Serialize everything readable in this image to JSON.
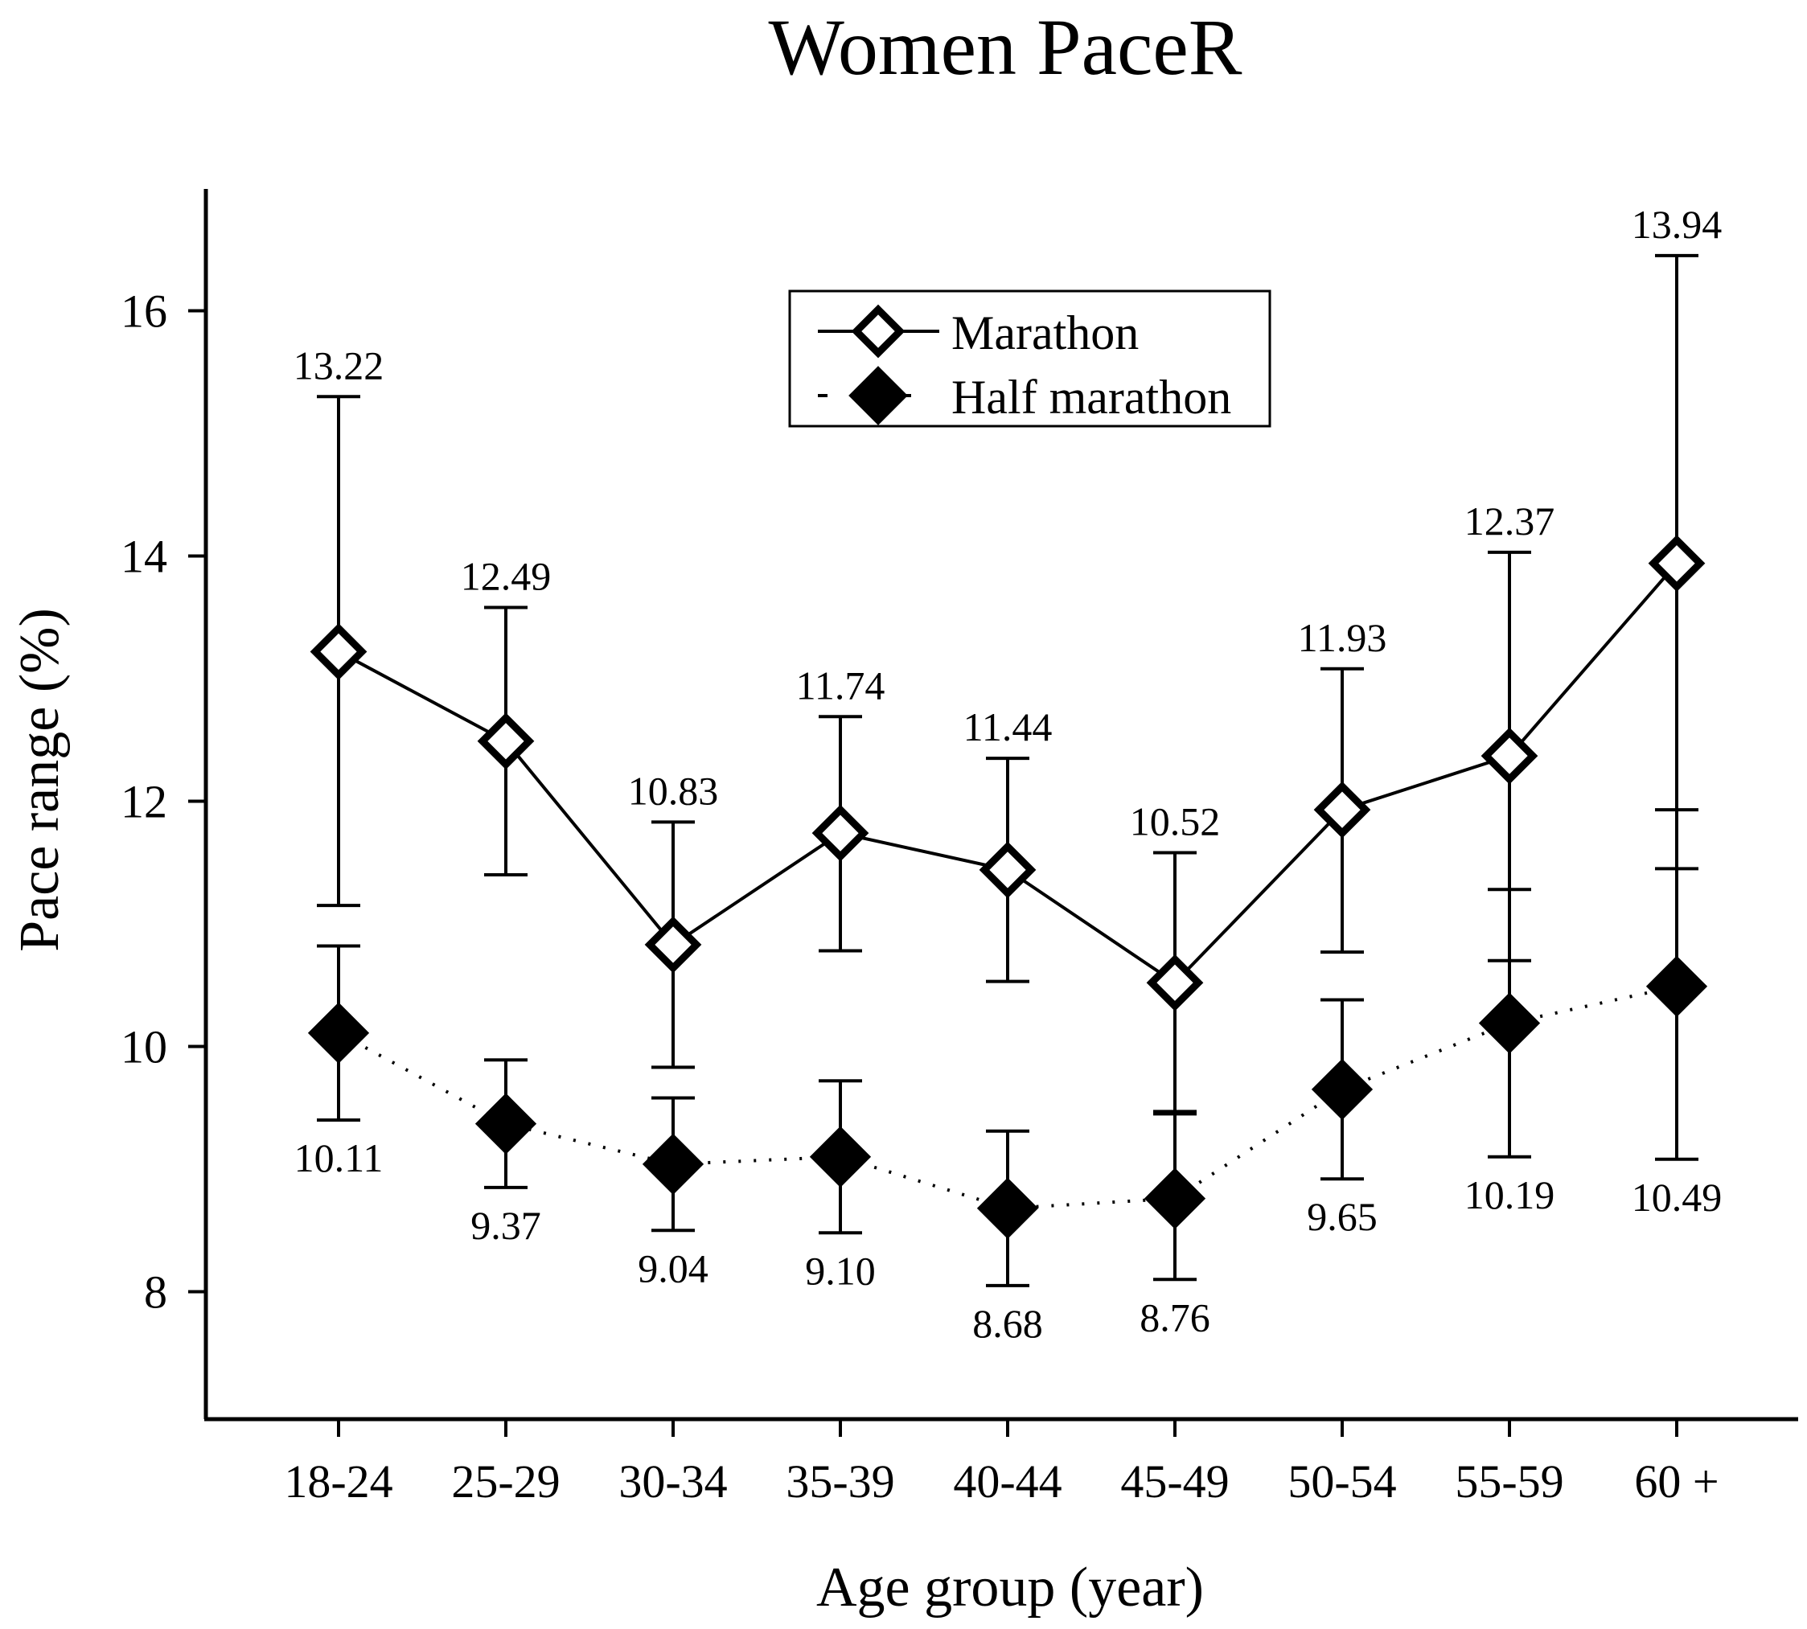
{
  "chart_data": {
    "type": "line",
    "title": "Women PaceR",
    "xlabel": "Age group (year)",
    "ylabel": "Pace range (%)",
    "ylim": [
      7,
      17
    ],
    "yticks": [
      "8",
      "10",
      "12",
      "14",
      "16"
    ],
    "categories": [
      "18-24",
      "25-29",
      "30-34",
      "35-39",
      "40-44",
      "45-49",
      "50-54",
      "55-59",
      "60 +"
    ],
    "legend_position": "top-center",
    "series": [
      {
        "name": "Marathon",
        "marker": "open-diamond",
        "line": "solid",
        "values": [
          13.22,
          12.49,
          10.83,
          11.74,
          11.44,
          10.52,
          11.93,
          12.37,
          13.94
        ],
        "labels": [
          "13.22",
          "12.49",
          "10.83",
          "11.74",
          "11.44",
          "10.52",
          "11.93",
          "12.37",
          "13.94"
        ],
        "err_low": [
          11.15,
          11.4,
          9.83,
          10.78,
          10.53,
          9.47,
          10.77,
          10.7,
          11.45
        ],
        "err_high": [
          15.3,
          13.58,
          11.83,
          12.69,
          12.35,
          11.58,
          13.08,
          14.03,
          16.45
        ]
      },
      {
        "name": "Half marathon",
        "marker": "filled-diamond",
        "line": "dotted",
        "values": [
          10.11,
          9.37,
          9.04,
          9.1,
          8.68,
          8.76,
          9.65,
          10.19,
          10.49
        ],
        "labels": [
          "10.11",
          "9.37",
          "9.04",
          "9.10",
          "8.68",
          "8.76",
          "9.65",
          "10.19",
          "10.49"
        ],
        "err_low": [
          9.4,
          8.85,
          8.5,
          8.48,
          8.05,
          8.1,
          8.92,
          9.1,
          9.08
        ],
        "err_high": [
          10.82,
          9.89,
          9.58,
          9.72,
          9.31,
          9.45,
          10.38,
          11.28,
          11.93
        ]
      }
    ]
  }
}
